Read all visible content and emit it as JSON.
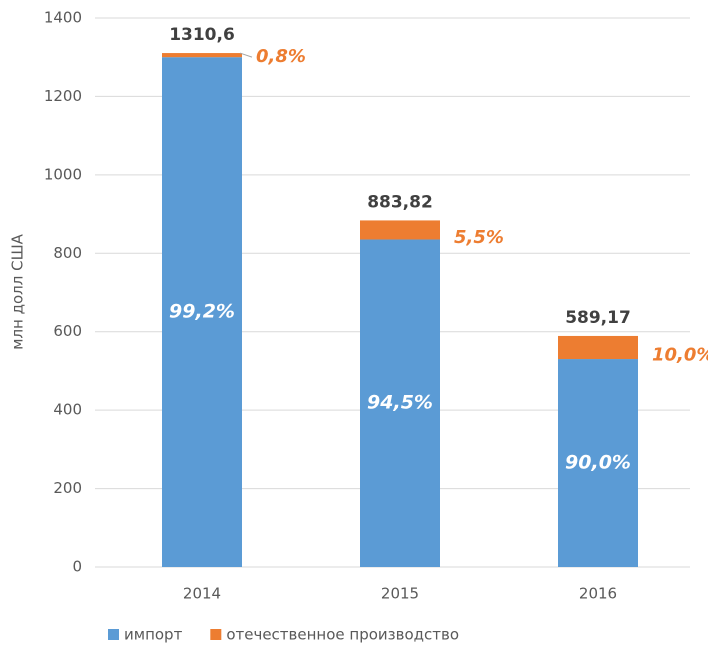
{
  "chart_data": {
    "type": "stacked_bar",
    "y_label": "млн долл США",
    "categories": [
      "2014",
      "2015",
      "2016"
    ],
    "series": [
      {
        "name": "импорт",
        "color": "#5b9bd5",
        "values": [
          1300.1,
          835.2,
          530.3
        ],
        "share_labels": [
          "99,2%",
          "94,5%",
          "90,0%"
        ]
      },
      {
        "name": "отечественное производство",
        "color": "#ed7d31",
        "values": [
          10.5,
          48.6,
          58.9
        ],
        "share_labels": [
          "0,8%",
          "5,5%",
          "10,0%"
        ]
      }
    ],
    "total_labels": [
      "1310,6",
      "883,82",
      "589,17"
    ],
    "ylim": [
      0,
      1400
    ],
    "yticks": [
      0,
      200,
      400,
      600,
      800,
      1000,
      1200,
      1400
    ],
    "grid": true,
    "legend": "bottom"
  }
}
